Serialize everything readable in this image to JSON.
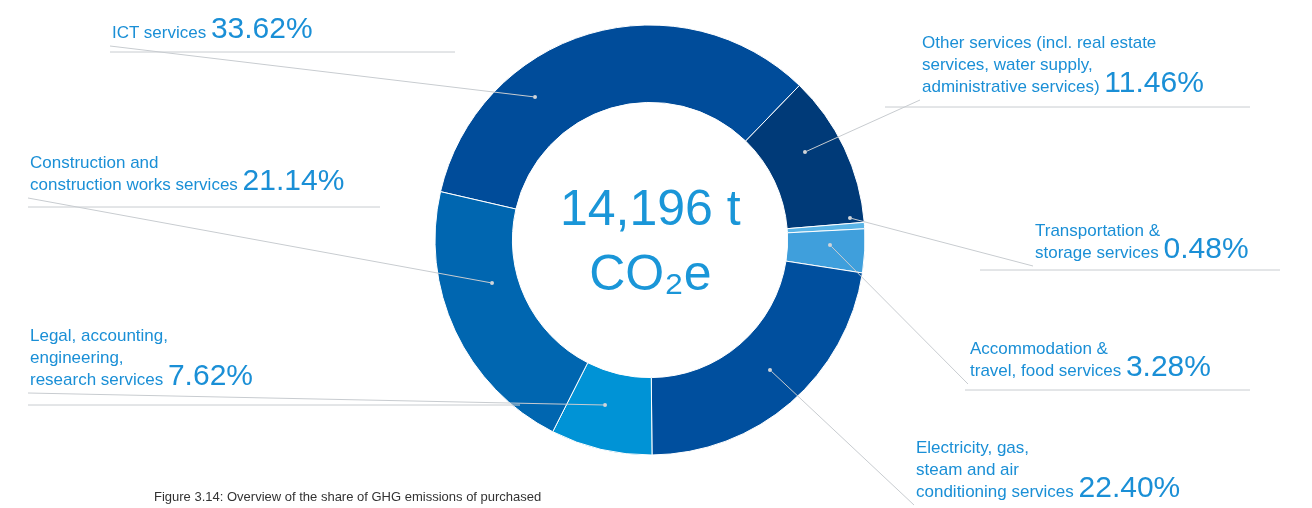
{
  "chart_data": {
    "type": "donut",
    "categories": [
      "ICT services",
      "Other services (incl. real estate\nservices, water supply,\nadministrative services)",
      "Transportation &\nstorage services",
      "Accommodation &\ntravel, food services",
      "Electricity, gas,\nsteam and air\nconditioning services",
      "Legal, accounting,\nengineering,\nresearch services",
      "Construction and\nconstruction works services"
    ],
    "values": [
      33.62,
      11.46,
      0.48,
      3.28,
      22.4,
      7.62,
      21.14
    ],
    "colors": [
      "#004c9a",
      "#003a78",
      "#5ab4e6",
      "#3f9fdc",
      "#004f9e",
      "#0093d6",
      "#0066b0"
    ],
    "value_labels": [
      "33.62%",
      "11.46%",
      "0.48%",
      "3.28%",
      "22.40%",
      "7.62%",
      "21.14%"
    ],
    "title": "14,196 t\nCO₂e",
    "annotations": [
      "Figure 3.14: Overview of the share of GHG emissions of purchased"
    ],
    "legend": false
  }
}
